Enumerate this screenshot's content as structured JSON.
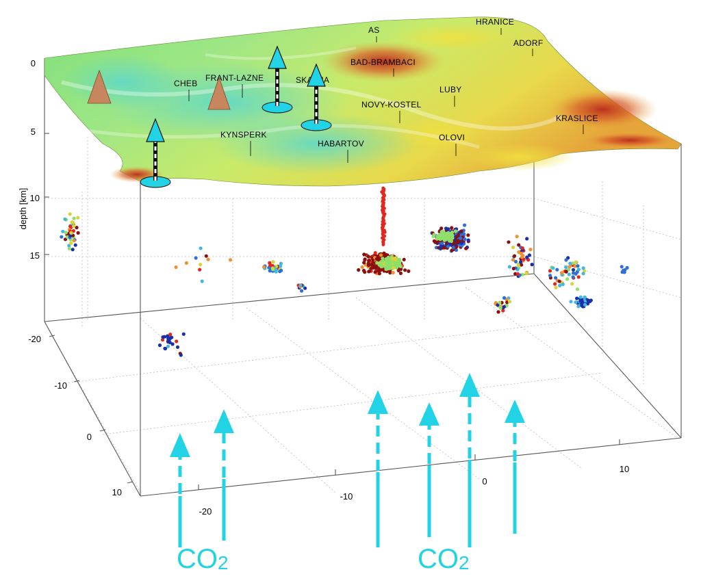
{
  "axes": {
    "depth_label": "depth [km]",
    "depth_ticks": [
      "0",
      "5",
      "10",
      "15"
    ],
    "y_ticks": [
      "-20",
      "-10",
      "0",
      "10"
    ],
    "x_ticks": [
      "-20",
      "-10",
      "0",
      "10"
    ]
  },
  "places": [
    "AS",
    "HRANICE",
    "ADORF",
    "BAD-BRAMBACI",
    "CHEB",
    "FRANT-LAZNE",
    "SKALNA",
    "LUBY",
    "NOVY-KOSTEL",
    "KRASLICE",
    "KYNSPERK",
    "HABARTOV",
    "OLOVI"
  ],
  "co2_labels": [
    {
      "main": "CO",
      "sub": "2"
    },
    {
      "main": "CO",
      "sub": "2"
    }
  ],
  "colors": {
    "co2_arrow": "#22d3e6",
    "volcano": "#c8865e",
    "quake_palette": [
      "#1a2fa8",
      "#2f6fd6",
      "#42b8e0",
      "#8fe06a",
      "#d7d43a",
      "#f09030",
      "#e0281e",
      "#8a1010"
    ]
  },
  "icons": [
    "volcano-icon",
    "gas-vent-arrow-icon",
    "co2-flux-arrow-icon"
  ]
}
